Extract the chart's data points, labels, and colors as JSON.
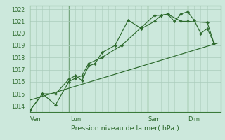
{
  "bg_color": "#cce8dc",
  "grid_color": "#aaccbb",
  "line_color": "#2d6a2d",
  "marker_color": "#2d6a2d",
  "xlabel": "Pression niveau de la mer( hPa )",
  "ylim": [
    1013.5,
    1022.3
  ],
  "yticks": [
    1014,
    1015,
    1016,
    1017,
    1018,
    1019,
    1020,
    1021,
    1022
  ],
  "day_labels": [
    "Ven",
    "Lun",
    "Sam",
    "Dim"
  ],
  "day_positions": [
    0.5,
    3.5,
    9.5,
    12.5
  ],
  "xlim": [
    0,
    14.5
  ],
  "vline_positions": [
    0,
    3,
    9,
    12
  ],
  "series1_x": [
    0.1,
    1.0,
    2.0,
    3.0,
    3.5,
    4.0,
    4.5,
    5.0,
    5.5,
    6.5,
    7.5,
    8.5,
    9.5,
    10.0,
    10.5,
    11.0,
    11.5,
    12.0,
    12.5,
    13.0,
    13.5,
    14.0
  ],
  "series1_y": [
    1013.7,
    1015.0,
    1015.0,
    1016.2,
    1016.5,
    1016.1,
    1017.3,
    1017.5,
    1018.4,
    1019.0,
    1021.1,
    1020.4,
    1021.0,
    1021.5,
    1021.6,
    1021.0,
    1021.6,
    1021.8,
    1021.1,
    1020.0,
    1020.4,
    1019.2
  ],
  "series2_x": [
    0.1,
    1.0,
    2.0,
    3.0,
    3.5,
    4.0,
    4.5,
    5.5,
    7.0,
    8.5,
    9.5,
    10.0,
    10.5,
    11.5,
    12.0,
    13.5,
    14.0
  ],
  "series2_y": [
    1013.7,
    1015.0,
    1014.1,
    1016.0,
    1016.3,
    1016.5,
    1017.5,
    1018.0,
    1019.0,
    1020.5,
    1021.5,
    1021.5,
    1021.6,
    1021.0,
    1021.0,
    1020.9,
    1019.2
  ],
  "trend_x": [
    0.1,
    14.3
  ],
  "trend_y": [
    1014.5,
    1019.2
  ]
}
